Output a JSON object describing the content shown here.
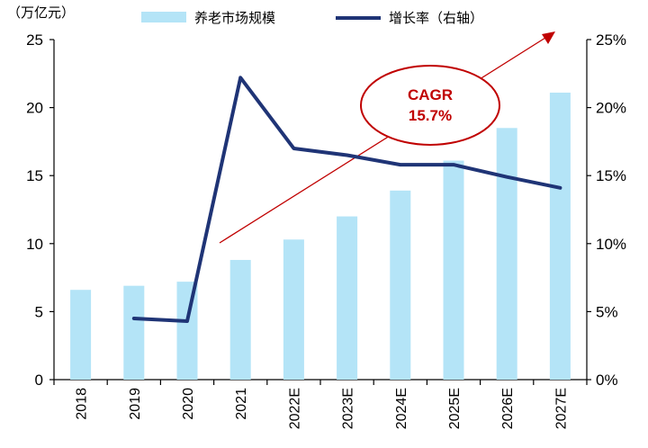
{
  "chart_data": {
    "type": "bar",
    "unit_label": "（万亿元）",
    "categories": [
      "2018",
      "2019",
      "2020",
      "2021",
      "2022E",
      "2023E",
      "2024E",
      "2025E",
      "2026E",
      "2027E"
    ],
    "series": [
      {
        "name": "养老市场规模",
        "type": "bar",
        "axis": "left",
        "color": "#b4e4f7",
        "values": [
          6.6,
          6.9,
          7.2,
          8.8,
          10.3,
          12.0,
          13.9,
          16.1,
          18.5,
          21.1
        ]
      },
      {
        "name": "增长率（右轴）",
        "type": "line",
        "axis": "right",
        "color": "#1f3476",
        "values": [
          null,
          4.5,
          4.3,
          22.2,
          17.0,
          16.5,
          15.8,
          15.8,
          14.9,
          14.1
        ]
      }
    ],
    "y_left": {
      "min": 0,
      "max": 25,
      "ticks": [
        "0",
        "5",
        "10",
        "15",
        "20",
        "25"
      ]
    },
    "y_right": {
      "min": 0,
      "max": 25,
      "ticks": [
        "0%",
        "5%",
        "10%",
        "15%",
        "20%",
        "25%"
      ]
    },
    "legend_position": "top",
    "grid": false,
    "annotation": {
      "text_line1": "CAGR",
      "text_line2": "15.7%",
      "color": "#c00000"
    }
  }
}
